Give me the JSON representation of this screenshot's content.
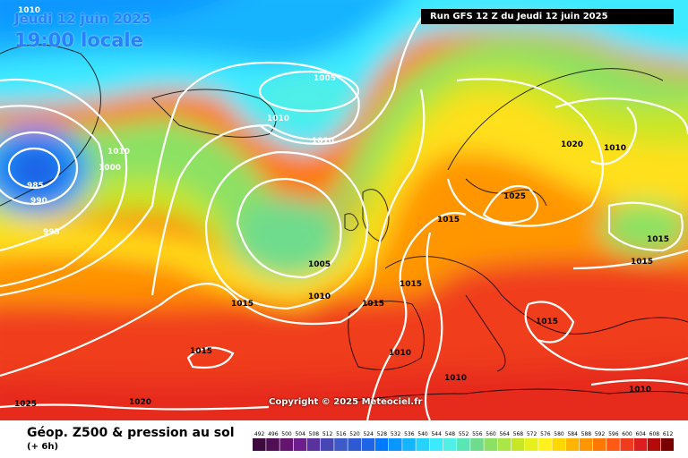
{
  "header": {
    "date": "Jeudi 12 juin 2025",
    "time": "19:00 locale",
    "run": "Run GFS 12 Z du Jeudi 12 juin 2025"
  },
  "copyright": "Copyright © 2025 Meteociel.fr",
  "footer": {
    "title": "Géop. Z500 & pression au sol",
    "subtitle": "(+ 6h)"
  },
  "legend": {
    "values": [
      "492",
      "496",
      "500",
      "504",
      "508",
      "512",
      "516",
      "520",
      "524",
      "528",
      "532",
      "536",
      "540",
      "544",
      "548",
      "552",
      "556",
      "560",
      "564",
      "568",
      "572",
      "576",
      "580",
      "584",
      "588",
      "592",
      "596",
      "600",
      "604",
      "608",
      "612"
    ],
    "colors": [
      "#3c0a3c",
      "#500f55",
      "#64146e",
      "#6e1e8c",
      "#5a32a0",
      "#4646b4",
      "#3c5ac8",
      "#2d5ad2",
      "#1e64e6",
      "#0078ff",
      "#0a96ff",
      "#14b4ff",
      "#28d2ff",
      "#3ceaff",
      "#50f0e6",
      "#5ae6b4",
      "#6edc8c",
      "#8ce164",
      "#aae646",
      "#c8e628",
      "#e6f01e",
      "#fff01e",
      "#ffd700",
      "#ffb400",
      "#ff9600",
      "#ff7800",
      "#ff5a14",
      "#f03c1e",
      "#dc1e1e",
      "#b40a0a",
      "#780000"
    ]
  },
  "isobars": [
    "1010",
    "1005",
    "1010",
    "1010",
    "1010",
    "1000",
    "985",
    "990",
    "995",
    "1005",
    "1015",
    "1010",
    "1015",
    "1015",
    "1015",
    "1015",
    "1010",
    "1010",
    "1020",
    "1025",
    "1025",
    "1020",
    "1010",
    "1015",
    "1015",
    "1015",
    "1010"
  ],
  "colors": {
    "cyan": "#28d2ff",
    "green": "#8ce164",
    "yellow": "#fff01e",
    "orange": "#ff9600",
    "red": "#f03c1e"
  }
}
